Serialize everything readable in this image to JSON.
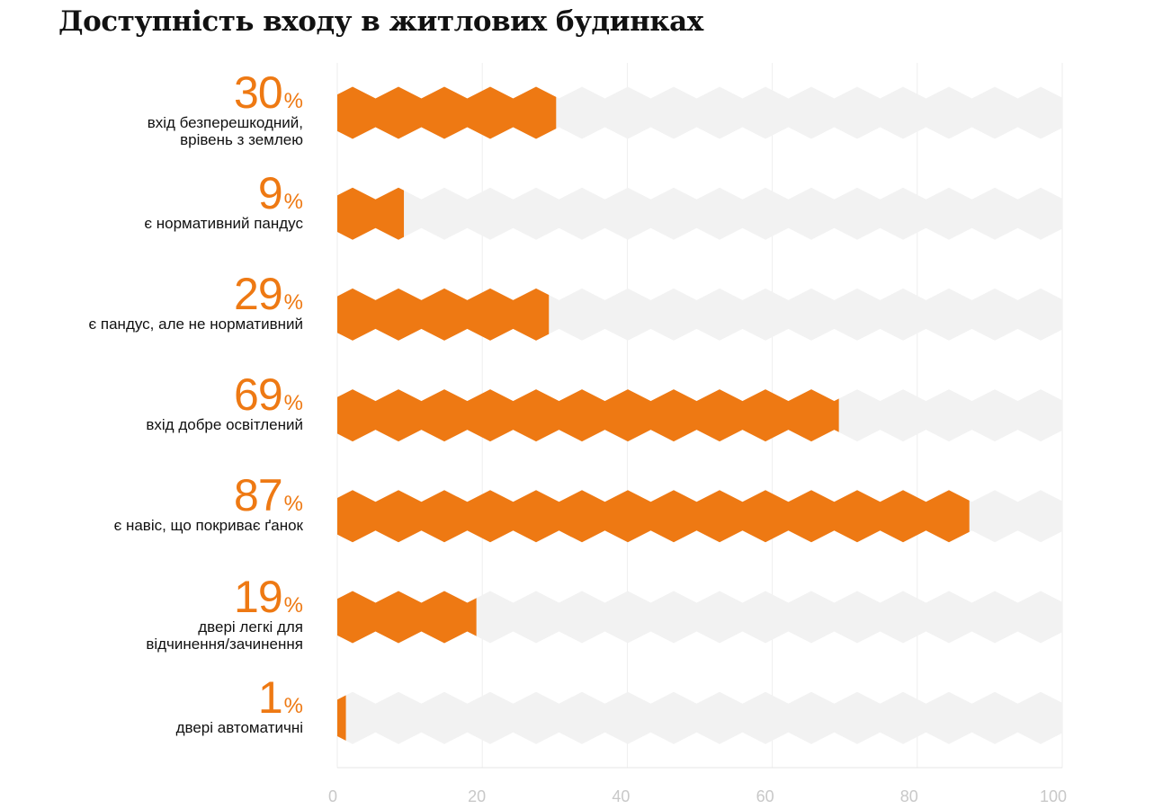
{
  "chart_data": {
    "type": "bar",
    "title": "Доступність входу в житлових будинках",
    "categories": [
      [
        "вхід безперешкодний,",
        "врівень з землею"
      ],
      [
        "є нормативний пандус"
      ],
      [
        "є пандус, але не нормативний"
      ],
      [
        "вхід добре освітлений"
      ],
      [
        "є навіс, що покриває ґанок"
      ],
      [
        "двері легкі для",
        "відчинення/зачинення"
      ],
      [
        "двері автоматичні"
      ]
    ],
    "values": [
      30,
      9,
      29,
      69,
      87,
      19,
      1
    ],
    "value_suffix": "%",
    "xlim": [
      0,
      100
    ],
    "xticks": [
      "0",
      "20",
      "40",
      "60",
      "80",
      "100"
    ],
    "xlabel": "",
    "ylabel": "",
    "grid": true,
    "colors": {
      "fill": "#EE7913",
      "track": "#F2F2F2",
      "grid": "#EEEEEE"
    }
  }
}
